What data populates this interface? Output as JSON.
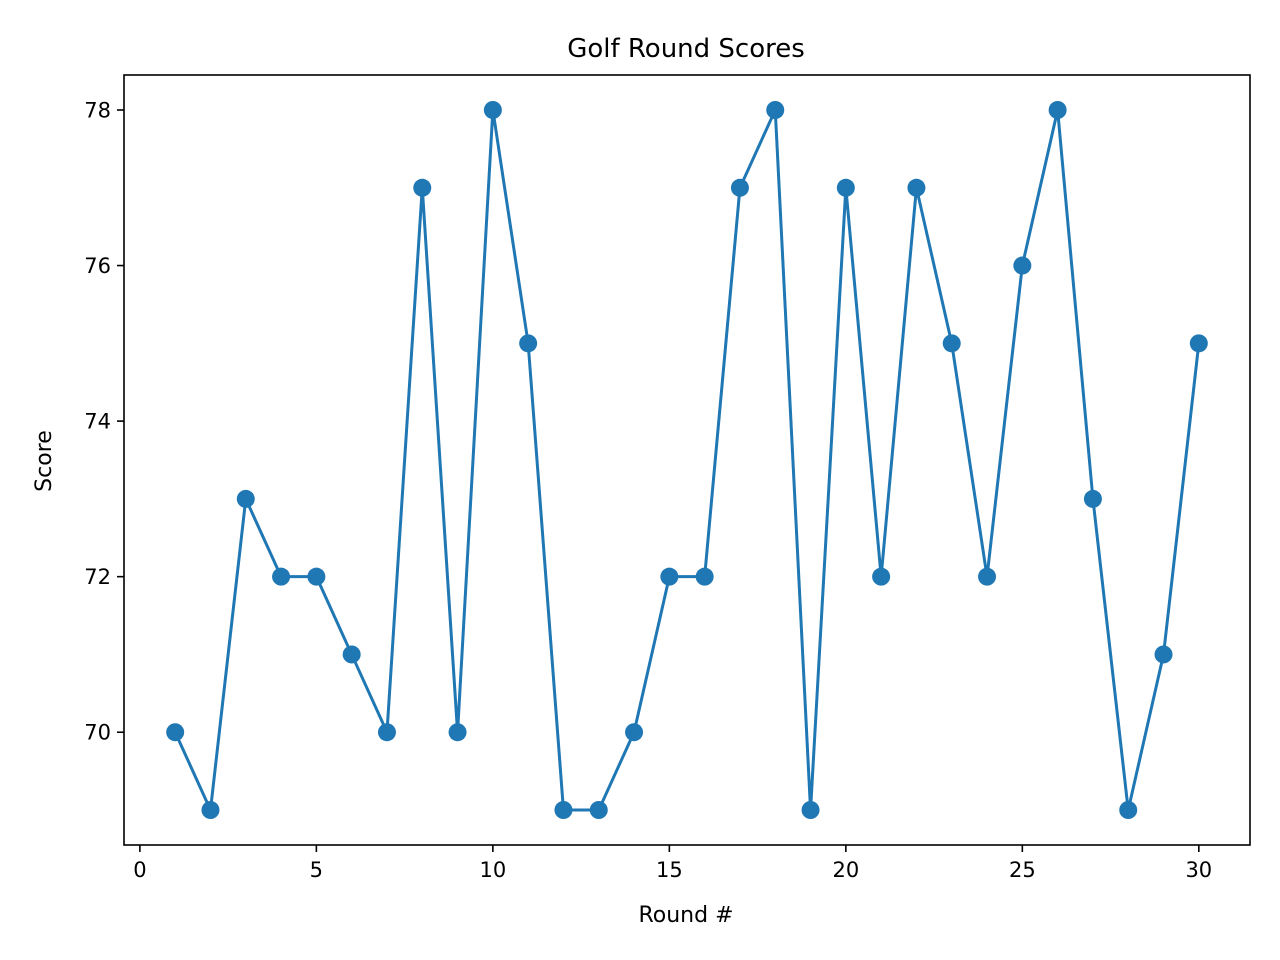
{
  "chart_data": {
    "type": "line",
    "title": "Golf Round Scores",
    "xlabel": "Round #",
    "ylabel": "Score",
    "xlim": [
      -0.45,
      31.45
    ],
    "ylim": [
      68.55,
      78.45
    ],
    "xticks": [
      0,
      5,
      10,
      15,
      20,
      25,
      30
    ],
    "yticks": [
      70,
      72,
      74,
      76,
      78
    ],
    "grid": false,
    "legend": "none",
    "marker": "circle",
    "color": "#1f77b4",
    "series": [
      {
        "x": [
          1,
          2,
          3,
          4,
          5,
          6,
          7,
          8,
          9,
          10,
          11,
          12,
          13,
          14,
          15,
          16,
          17,
          18,
          19,
          20,
          21,
          22,
          23,
          24,
          25,
          26,
          27,
          28,
          29,
          30
        ],
        "values": [
          70,
          69,
          73,
          72,
          72,
          71,
          70,
          77,
          70,
          78,
          75,
          69,
          69,
          70,
          72,
          72,
          77,
          78,
          69,
          77,
          72,
          77,
          75,
          72,
          76,
          78,
          73,
          69,
          71,
          75
        ]
      }
    ]
  }
}
